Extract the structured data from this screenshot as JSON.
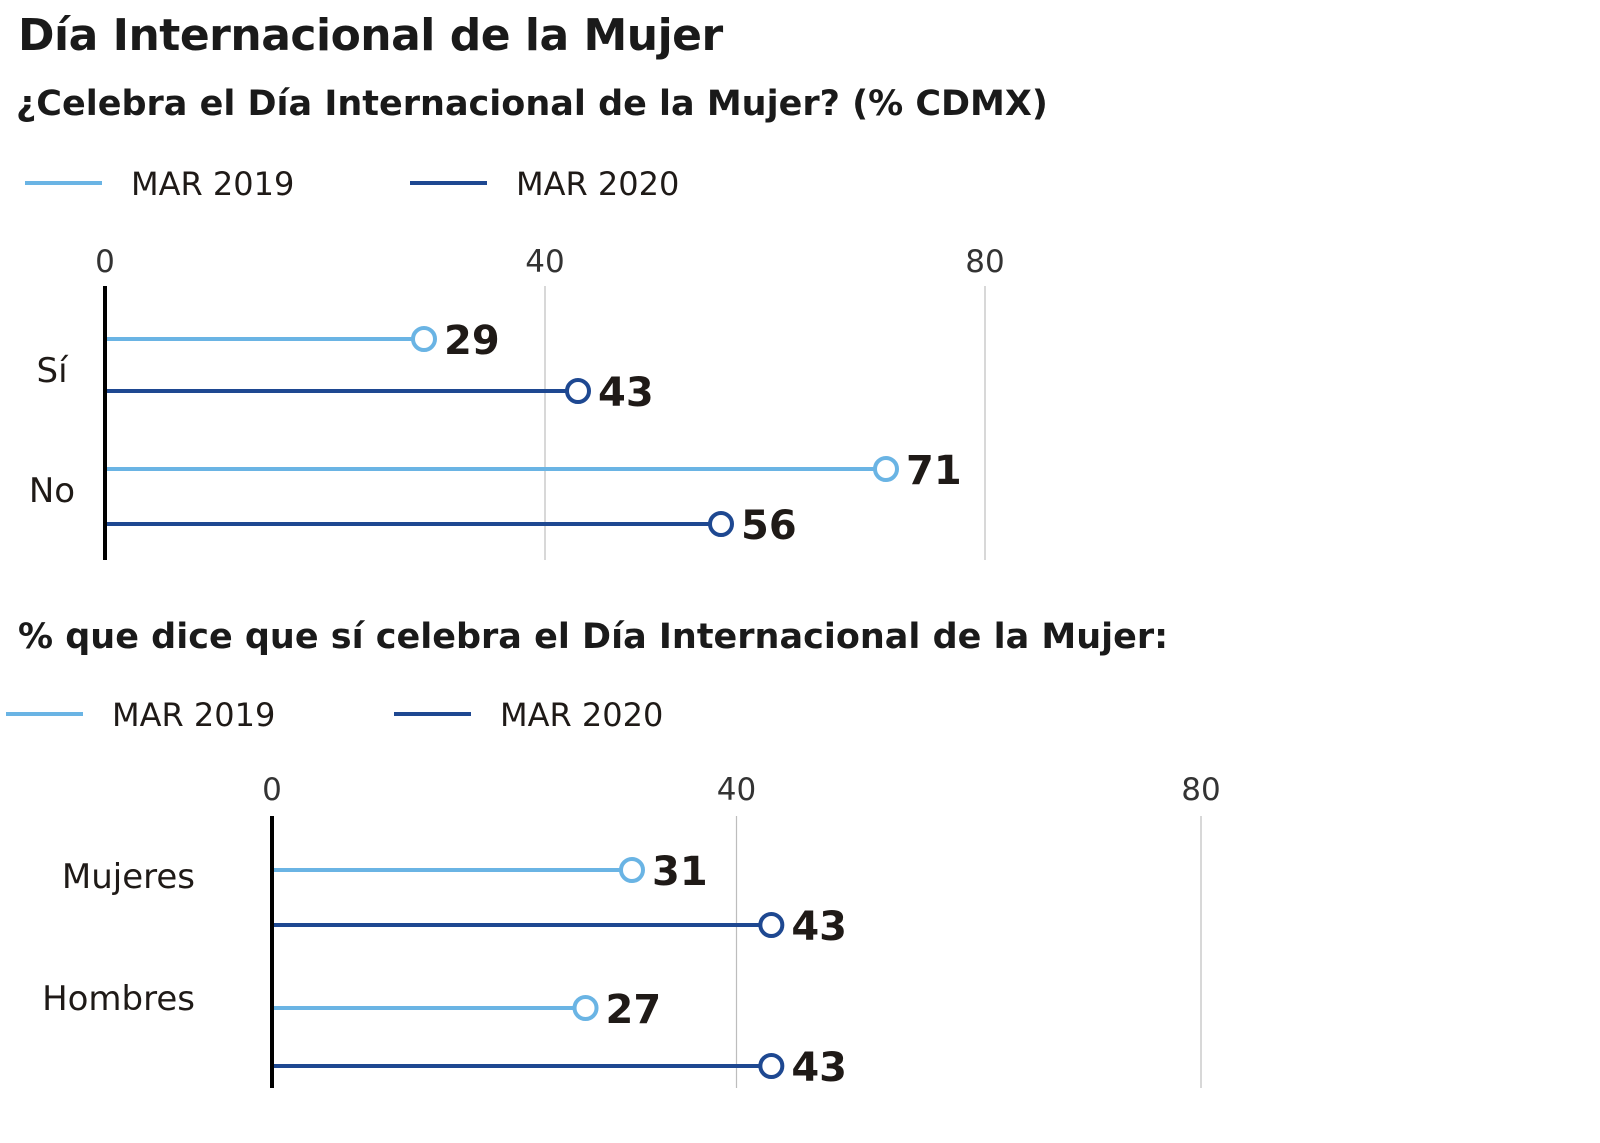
{
  "title": "Día Internacional de la Mujer",
  "colors": {
    "mar2019": "#6ab4e4",
    "mar2020": "#1e4891",
    "axis": "#000000",
    "grid": "#bdbdbd"
  },
  "chart_data": [
    {
      "type": "lollipop",
      "title": "¿Celebra el Día Internacional de la Mujer?  (% CDMX)",
      "legend": [
        "MAR 2019",
        "MAR 2020"
      ],
      "legend_position": "top-left",
      "x_ticks": [
        "0",
        "40",
        "80"
      ],
      "xlim": [
        0,
        80
      ],
      "grid": true,
      "categories": [
        "Sí",
        "No"
      ],
      "series": [
        {
          "name": "MAR 2019",
          "values": [
            29,
            71
          ]
        },
        {
          "name": "MAR 2020",
          "values": [
            43,
            56
          ]
        }
      ]
    },
    {
      "type": "lollipop",
      "title": "% que dice que sí celebra el Día Internacional de la Mujer:",
      "legend": [
        "MAR 2019",
        "MAR 2020"
      ],
      "legend_position": "top-left",
      "x_ticks": [
        "0",
        "40",
        "80"
      ],
      "xlim": [
        0,
        80
      ],
      "grid": true,
      "categories": [
        "Mujeres",
        "Hombres"
      ],
      "series": [
        {
          "name": "MAR 2019",
          "values": [
            31,
            27
          ]
        },
        {
          "name": "MAR 2020",
          "values": [
            43,
            43
          ]
        }
      ]
    }
  ]
}
